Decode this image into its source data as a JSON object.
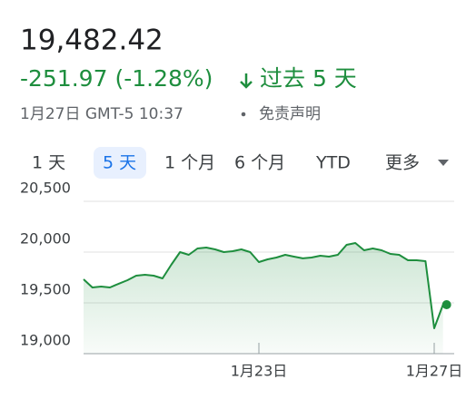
{
  "header": {
    "price": "19,482.42",
    "change": "-251.97 (-1.28%)",
    "period": "过去 5 天",
    "timestamp": "1月27日 GMT-5 10:37",
    "disclaimer": "免责声明"
  },
  "tabs": {
    "items": [
      "1 天",
      "5 天",
      "1 个月",
      "6 个月",
      "YTD",
      "更多"
    ],
    "selected": 1
  },
  "chart_data": {
    "type": "line",
    "color": "#1e8e3e",
    "grid": true,
    "categories": [
      null,
      null,
      null,
      null,
      null,
      null,
      null,
      null,
      null,
      null,
      null,
      null,
      null,
      null,
      null,
      null,
      null,
      null,
      null,
      null,
      "1月23日",
      null,
      null,
      null,
      null,
      null,
      null,
      null,
      null,
      null,
      null,
      null,
      null,
      null,
      null,
      null,
      null,
      null,
      null,
      null,
      "1月27日",
      null
    ],
    "values": [
      19732,
      19652,
      19661,
      19652,
      19688,
      19723,
      19768,
      19777,
      19768,
      19741,
      19875,
      20000,
      19973,
      20036,
      20045,
      20027,
      20000,
      20009,
      20027,
      20000,
      19902,
      19929,
      19946,
      19973,
      19955,
      19938,
      19946,
      19964,
      19955,
      19973,
      20071,
      20089,
      20018,
      20036,
      20018,
      19982,
      19973,
      19920,
      19920,
      19911,
      19250,
      19482
    ],
    "ylim": [
      19000,
      20500
    ],
    "yticks": [
      {
        "value": 19000,
        "label": "19,000"
      },
      {
        "value": 19500,
        "label": "19,500"
      },
      {
        "value": 20000,
        "label": "20,000"
      },
      {
        "value": 20500,
        "label": "20,500"
      }
    ]
  }
}
